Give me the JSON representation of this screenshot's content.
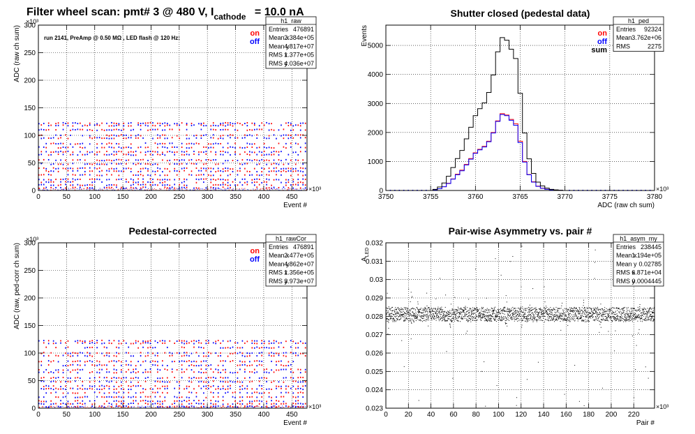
{
  "main_title": {
    "prefix": "Filter wheel scan: pmt#   3 @   480 V, I",
    "subscript": "cathode",
    "suffix": "= 10.0 nA"
  },
  "colors": {
    "on": "#ff0000",
    "off": "#0000ff",
    "sum": "#000000",
    "grid": "#000000"
  },
  "chart_data": [
    {
      "id": "raw",
      "type": "scatter",
      "title": "",
      "xlabel": "Event #",
      "ylabel": "ADC (raw ch sum)",
      "x_multiplier": "×10³",
      "y_multiplier": "×10³",
      "xlim": [
        0,
        476.891
      ],
      "ylim": [
        0,
        300
      ],
      "xticks": [
        0,
        50,
        100,
        150,
        200,
        250,
        300,
        350,
        400,
        450
      ],
      "yticks": [
        0,
        50,
        100,
        150,
        200,
        250,
        300
      ],
      "annotation": "run 2141, PreAmp @ 0.50 MΩ , LED flash @  120 Hz:",
      "legend": [
        {
          "name": "on",
          "color": "#ff0000"
        },
        {
          "name": "off",
          "color": "#0000ff"
        }
      ],
      "series_levels": [
        5,
        10,
        15,
        20,
        28,
        35,
        40,
        48,
        55,
        65,
        70,
        78,
        85,
        95,
        100,
        110,
        118,
        122
      ],
      "stats": {
        "name": "h1_raw",
        "rows": [
          {
            "label": "Entries",
            "value": "476891"
          },
          {
            "label": "Mean x",
            "value": "2.384e+05"
          },
          {
            "label": "Mean y",
            "value": "4.817e+07"
          },
          {
            "label": "RMS x",
            "value": "1.377e+05"
          },
          {
            "label": "RMS y",
            "value": "4.036e+07"
          }
        ]
      }
    },
    {
      "id": "ped",
      "type": "line",
      "title": "Shutter closed (pedestal data)",
      "xlabel": "ADC (raw ch sum)",
      "ylabel": "Events",
      "x_multiplier": "×10³",
      "xlim": [
        3750,
        3780
      ],
      "ylim": [
        0,
        5700
      ],
      "xticks": [
        3750,
        3755,
        3760,
        3765,
        3770,
        3775,
        3780
      ],
      "yticks": [
        0,
        1000,
        2000,
        3000,
        4000,
        5000
      ],
      "legend": [
        {
          "name": "on",
          "color": "#ff0000"
        },
        {
          "name": "off",
          "color": "#0000ff"
        },
        {
          "name": "sum",
          "color": "#000000"
        }
      ],
      "x": [
        3755.5,
        3756,
        3756.5,
        3757,
        3757.5,
        3758,
        3758.5,
        3759,
        3759.5,
        3760,
        3760.5,
        3761,
        3761.5,
        3762,
        3762.5,
        3763,
        3763.5,
        3764,
        3764.5,
        3765,
        3765.5,
        3766,
        3766.5,
        3767,
        3767.5,
        3768,
        3768.5,
        3769,
        3769.5,
        3770
      ],
      "series": [
        {
          "name": "on",
          "values": [
            20,
            60,
            130,
            250,
            400,
            560,
            700,
            900,
            1100,
            1300,
            1420,
            1520,
            1700,
            2000,
            2400,
            2650,
            2600,
            2450,
            2300,
            1700,
            1000,
            550,
            300,
            150,
            80,
            40,
            20,
            10,
            5,
            0
          ]
        },
        {
          "name": "off",
          "values": [
            20,
            60,
            130,
            240,
            390,
            540,
            680,
            880,
            1080,
            1280,
            1400,
            1500,
            1680,
            1980,
            2380,
            2620,
            2580,
            2420,
            2250,
            1650,
            980,
            540,
            290,
            140,
            75,
            40,
            20,
            10,
            5,
            0
          ]
        },
        {
          "name": "sum",
          "values": [
            40,
            120,
            260,
            490,
            790,
            1100,
            1380,
            1780,
            2180,
            2580,
            2820,
            3020,
            3380,
            3980,
            4780,
            5270,
            5180,
            4870,
            4550,
            3350,
            1980,
            1090,
            590,
            290,
            155,
            80,
            40,
            20,
            10,
            0
          ]
        }
      ],
      "stats": {
        "name": "h1_ped",
        "rows": [
          {
            "label": "Entries",
            "value": "92324"
          },
          {
            "label": "Mean",
            "value": "3.762e+06"
          },
          {
            "label": "RMS",
            "value": "2275"
          }
        ]
      }
    },
    {
      "id": "rawCor",
      "type": "scatter",
      "title": "Pedestal-corrected",
      "xlabel": "Event #",
      "ylabel": "ADC (raw, ped-corr ch sum)",
      "x_multiplier": "×10³",
      "y_multiplier": "×10³",
      "xlim": [
        0,
        476.891
      ],
      "ylim": [
        0,
        300
      ],
      "xticks": [
        0,
        50,
        100,
        150,
        200,
        250,
        300,
        350,
        400,
        450
      ],
      "yticks": [
        0,
        50,
        100,
        150,
        200,
        250,
        300
      ],
      "legend": [
        {
          "name": "on",
          "color": "#ff0000"
        },
        {
          "name": "off",
          "color": "#0000ff"
        }
      ],
      "series_levels": [
        3,
        8,
        13,
        20,
        28,
        35,
        40,
        48,
        55,
        65,
        70,
        78,
        85,
        95,
        100,
        110,
        118,
        122
      ],
      "stats": {
        "name": "h1_rawCor",
        "rows": [
          {
            "label": "Entries",
            "value": "476891"
          },
          {
            "label": "Mean x",
            "value": "2.477e+05"
          },
          {
            "label": "Mean y",
            "value": "4.862e+07"
          },
          {
            "label": "RMS x",
            "value": "1.356e+05"
          },
          {
            "label": "RMS y",
            "value": "3.973e+07"
          }
        ]
      }
    },
    {
      "id": "asym",
      "type": "scatter",
      "title": "Pair-wise Asymmetry vs. pair #",
      "xlabel": "Pair #",
      "ylabel": "A",
      "ylabel_sub": "LED",
      "x_multiplier": "×10³",
      "xlim": [
        0,
        238.445
      ],
      "ylim": [
        0.023,
        0.032
      ],
      "xticks": [
        0,
        20,
        40,
        60,
        80,
        100,
        120,
        140,
        160,
        180,
        200,
        220
      ],
      "yticks": [
        0.023,
        0.024,
        0.025,
        0.026,
        0.027,
        0.028,
        0.029,
        0.03,
        0.031,
        0.032
      ],
      "center": 0.0281,
      "stats": {
        "name": "h1_asym_my",
        "rows": [
          {
            "label": "Entries",
            "value": "238445"
          },
          {
            "label": "Mean x",
            "value": "1.194e+05"
          },
          {
            "label": "Mean y",
            "value": "0.02785"
          },
          {
            "label": "RMS x",
            "value": "6.871e+04"
          },
          {
            "label": "RMS y",
            "value": "0.0004445"
          }
        ]
      }
    }
  ]
}
